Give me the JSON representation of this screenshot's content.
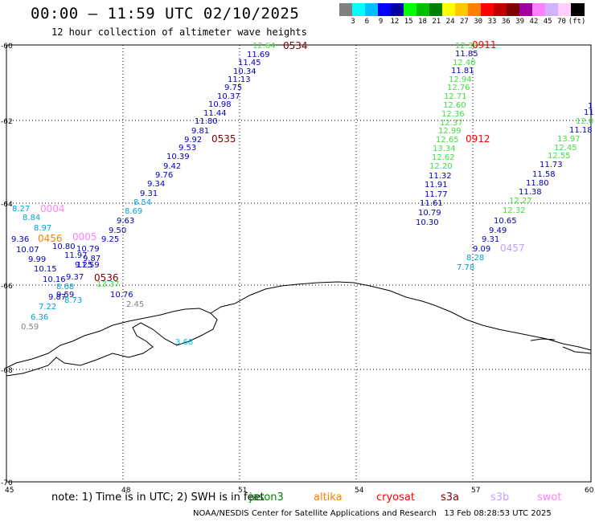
{
  "title": "00:00 – 11:59 UTC 02/10/2025",
  "subtitle": "12 hour collection of altimeter wave heights",
  "scale": {
    "colors": [
      "#808080",
      "#00ffff",
      "#00bfff",
      "#0000ff",
      "#0000a0",
      "#00ff00",
      "#00c000",
      "#008000",
      "#ffff00",
      "#ffc800",
      "#ff8000",
      "#ff0000",
      "#c00000",
      "#800000",
      "#a000a0",
      "#ff80ff",
      "#d0b0ff",
      "#ffd0ff",
      "#000000"
    ],
    "labels": [
      "3",
      "6",
      "9",
      "12",
      "15",
      "18",
      "21",
      "24",
      "27",
      "30",
      "33",
      "36",
      "39",
      "42",
      "45",
      "70",
      "(ft)"
    ]
  },
  "axes": {
    "lon_labels": [
      "45",
      "48",
      "51",
      "54",
      "57",
      "60"
    ],
    "lat_labels": [
      "-60",
      "-62",
      "-64",
      "-66",
      "-68",
      "-70"
    ]
  },
  "passes": [
    {
      "id": "0534",
      "color": "#800000"
    },
    {
      "id": "0535",
      "color": "#800000"
    },
    {
      "id": "0536",
      "color": "#800000"
    },
    {
      "id": "0911",
      "color": "#ff0000"
    },
    {
      "id": "0912",
      "color": "#ff0000"
    },
    {
      "id": "0004",
      "color": "#ff80ff"
    },
    {
      "id": "0005",
      "color": "#ff80ff"
    },
    {
      "id": "0456",
      "color": "#ff8000"
    },
    {
      "id": "0457",
      "color": "#c0a0ff"
    }
  ],
  "track1": [
    {
      "v": "12.64",
      "c": "#40e040"
    },
    {
      "v": "11.69",
      "c": "#0000c0"
    },
    {
      "v": "11.45",
      "c": "#0000c0"
    },
    {
      "v": "10.34",
      "c": "#0000c0"
    },
    {
      "v": "11.13",
      "c": "#0000c0"
    },
    {
      "v": "9.75",
      "c": "#0000c0"
    },
    {
      "v": "10.37",
      "c": "#0000c0"
    },
    {
      "v": "10.98",
      "c": "#0000c0"
    },
    {
      "v": "11.44",
      "c": "#0000c0"
    },
    {
      "v": "11.80",
      "c": "#0000c0"
    },
    {
      "v": "9.81",
      "c": "#0000c0"
    },
    {
      "v": "9.92",
      "c": "#0000c0"
    },
    {
      "v": "9.53",
      "c": "#0000c0"
    },
    {
      "v": "10.39",
      "c": "#0000c0"
    },
    {
      "v": "9.42",
      "c": "#0000c0"
    },
    {
      "v": "9.76",
      "c": "#0000c0"
    },
    {
      "v": "9.34",
      "c": "#0000c0"
    },
    {
      "v": "9.31",
      "c": "#0000c0"
    },
    {
      "v": "8.54",
      "c": "#00a0e0"
    },
    {
      "v": "8.69",
      "c": "#00a0e0"
    },
    {
      "v": "9.63",
      "c": "#0000c0"
    },
    {
      "v": "9.50",
      "c": "#0000c0"
    },
    {
      "v": "9.25",
      "c": "#0000c0"
    },
    {
      "v": "10.79",
      "c": "#0000c0"
    },
    {
      "v": "9.87",
      "c": "#0000c0"
    },
    {
      "v": "11.59",
      "c": "#0000c0"
    },
    {
      "v": "10.76",
      "c": "#0000c0"
    },
    {
      "v": "2.45",
      "c": "#808080"
    }
  ],
  "track2": [
    {
      "v": "8.27",
      "c": "#00a0e0"
    },
    {
      "v": "8.84",
      "c": "#00a0e0"
    },
    {
      "v": "8.97",
      "c": "#00a0e0"
    },
    {
      "v": "9.36",
      "c": "#0000c0"
    },
    {
      "v": "10.07",
      "c": "#0000c0"
    },
    {
      "v": "10.80",
      "c": "#0000c0"
    },
    {
      "v": "11.97",
      "c": "#0000c0"
    },
    {
      "v": "9.99",
      "c": "#0000c0"
    },
    {
      "v": "10.15",
      "c": "#0000c0"
    },
    {
      "v": "9.25",
      "c": "#0000c0"
    },
    {
      "v": "10.16",
      "c": "#0000c0"
    },
    {
      "v": "9.37",
      "c": "#0000c0"
    },
    {
      "v": "8.68",
      "c": "#00a0e0"
    },
    {
      "v": "9.59",
      "c": "#0000c0"
    },
    {
      "v": "9.87",
      "c": "#0000c0"
    },
    {
      "v": "8.73",
      "c": "#00a0e0"
    },
    {
      "v": "7.22",
      "c": "#00a0e0"
    },
    {
      "v": "6.36",
      "c": "#00a0e0"
    },
    {
      "v": "0.59",
      "c": "#808080"
    },
    {
      "v": "3.68",
      "c": "#00c0e0"
    },
    {
      "v": "13.37",
      "c": "#40e040"
    }
  ],
  "track3": [
    {
      "v": "12.36",
      "c": "#40e040"
    },
    {
      "v": "11.85",
      "c": "#0000c0"
    },
    {
      "v": "12.40",
      "c": "#40e040"
    },
    {
      "v": "11.81",
      "c": "#0000c0"
    },
    {
      "v": "12.94",
      "c": "#40e040"
    },
    {
      "v": "12.76",
      "c": "#40e040"
    },
    {
      "v": "12.71",
      "c": "#40e040"
    },
    {
      "v": "12.60",
      "c": "#40e040"
    },
    {
      "v": "12.36",
      "c": "#40e040"
    },
    {
      "v": "12.37",
      "c": "#40e040"
    },
    {
      "v": "12.99",
      "c": "#40e040"
    },
    {
      "v": "12.65",
      "c": "#40e040"
    },
    {
      "v": "13.34",
      "c": "#40e040"
    },
    {
      "v": "12.62",
      "c": "#40e040"
    },
    {
      "v": "12.20",
      "c": "#40e040"
    },
    {
      "v": "11.32",
      "c": "#0000c0"
    },
    {
      "v": "11.91",
      "c": "#0000c0"
    },
    {
      "v": "11.77",
      "c": "#0000c0"
    },
    {
      "v": "11.61",
      "c": "#0000c0"
    },
    {
      "v": "10.79",
      "c": "#0000c0"
    },
    {
      "v": "10.30",
      "c": "#0000c0"
    }
  ],
  "track4": [
    {
      "v": "1",
      "c": "#0000c0"
    },
    {
      "v": "11",
      "c": "#0000c0"
    },
    {
      "v": "12.0",
      "c": "#40e040"
    },
    {
      "v": "11.18",
      "c": "#0000c0"
    },
    {
      "v": "13.97",
      "c": "#40e040"
    },
    {
      "v": "12.45",
      "c": "#40e040"
    },
    {
      "v": "12.55",
      "c": "#40e040"
    },
    {
      "v": "11.73",
      "c": "#0000c0"
    },
    {
      "v": "11.58",
      "c": "#0000c0"
    },
    {
      "v": "11.80",
      "c": "#0000c0"
    },
    {
      "v": "11.38",
      "c": "#0000c0"
    },
    {
      "v": "12.27",
      "c": "#40e040"
    },
    {
      "v": "12.32",
      "c": "#40e040"
    },
    {
      "v": "10.65",
      "c": "#0000c0"
    },
    {
      "v": "9.49",
      "c": "#0000c0"
    },
    {
      "v": "9.31",
      "c": "#0000c0"
    },
    {
      "v": "9.09",
      "c": "#0000c0"
    },
    {
      "v": "8.28",
      "c": "#00a0e0"
    },
    {
      "v": "7.78",
      "c": "#00a0e0"
    }
  ],
  "note": "note: 1) Time is in UTC; 2) SWH is in feet",
  "legend": [
    {
      "name": "jason3",
      "color": "#008000"
    },
    {
      "name": "altika",
      "color": "#ff8000"
    },
    {
      "name": "cryosat",
      "color": "#ff0000"
    },
    {
      "name": "s3a",
      "color": "#800000"
    },
    {
      "name": "s3b",
      "color": "#c0a0ff"
    },
    {
      "name": "swot",
      "color": "#ff80ff"
    }
  ],
  "footer": "NOAA/NESDIS Center for Satellite Applications and Research   13 Feb 08:28:53 UTC 2025"
}
